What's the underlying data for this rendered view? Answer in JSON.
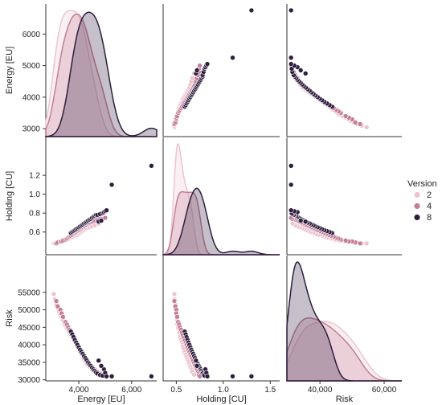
{
  "chart_data": {
    "type": "pairplot",
    "variables": [
      {
        "key": "energy",
        "label": "Energy  [EU]",
        "range": [
          2750,
          6950
        ],
        "ticks": [
          3000,
          4000,
          5000,
          6000
        ],
        "tick_labels": [
          "3000",
          "4000",
          "5000",
          "6000"
        ],
        "bottom_ticks": [
          4000,
          6000
        ],
        "bottom_tick_labels": [
          "4,000",
          "6,000"
        ]
      },
      {
        "key": "holding",
        "label": "Holding  [CU]",
        "range": [
          0.36,
          1.6
        ],
        "ticks": [
          0.6,
          0.8,
          1.0,
          1.2
        ],
        "tick_labels": [
          "0.6",
          "0.8",
          "1.0",
          "1.2"
        ],
        "bottom_ticks": [
          0.5,
          1.0,
          1.5
        ],
        "bottom_tick_labels": [
          "0.5",
          "1.0",
          "1.5"
        ]
      },
      {
        "key": "risk",
        "label": "Risk",
        "range": [
          29700,
          65500
        ],
        "ticks": [
          30000,
          35000,
          40000,
          45000,
          50000,
          55000
        ],
        "tick_labels": [
          "30000",
          "35000",
          "40000",
          "45000",
          "50000",
          "55000"
        ],
        "bottom_ticks": [
          40000,
          60000
        ],
        "bottom_tick_labels": [
          "40,000",
          "60,000"
        ]
      }
    ],
    "legend": {
      "title": "Version",
      "placement": "right",
      "entries": [
        "2",
        "4",
        "8"
      ]
    },
    "colors": {
      "2": "#ecc5cf",
      "4": "#c47e99",
      "8": "#2d1e3e"
    },
    "series": [
      {
        "name": "2",
        "points": [
          [
            3050,
            0.48,
            54500
          ],
          [
            3100,
            0.48,
            53000
          ],
          [
            3150,
            0.49,
            51500
          ],
          [
            3200,
            0.49,
            50500
          ],
          [
            3250,
            0.5,
            49500
          ],
          [
            3300,
            0.5,
            48800
          ],
          [
            3350,
            0.5,
            48000
          ],
          [
            3400,
            0.51,
            47000
          ],
          [
            3450,
            0.51,
            46000
          ],
          [
            3500,
            0.52,
            45500
          ],
          [
            3550,
            0.52,
            44800
          ],
          [
            3600,
            0.53,
            44000
          ],
          [
            3650,
            0.53,
            43500
          ],
          [
            3700,
            0.54,
            42800
          ],
          [
            3750,
            0.54,
            42300
          ],
          [
            3800,
            0.55,
            41500
          ],
          [
            3850,
            0.56,
            40800
          ],
          [
            3900,
            0.57,
            40200
          ],
          [
            3950,
            0.57,
            39500
          ],
          [
            4000,
            0.58,
            38800
          ],
          [
            4050,
            0.59,
            38000
          ],
          [
            4100,
            0.6,
            37200
          ],
          [
            4150,
            0.61,
            36500
          ],
          [
            4200,
            0.62,
            35800
          ],
          [
            4250,
            0.63,
            35200
          ],
          [
            4300,
            0.64,
            34500
          ],
          [
            4400,
            0.65,
            33800
          ],
          [
            4500,
            0.66,
            33000
          ],
          [
            4600,
            0.67,
            32300
          ],
          [
            4750,
            0.69,
            31500
          ]
        ]
      },
      {
        "name": "4",
        "points": [
          [
            3150,
            0.48,
            52500
          ],
          [
            3200,
            0.49,
            51000
          ],
          [
            3300,
            0.5,
            50000
          ],
          [
            3350,
            0.5,
            49000
          ],
          [
            3400,
            0.51,
            48000
          ],
          [
            3500,
            0.52,
            46500
          ],
          [
            3550,
            0.53,
            45800
          ],
          [
            3600,
            0.54,
            45000
          ],
          [
            3650,
            0.55,
            44300
          ],
          [
            3700,
            0.56,
            43500
          ],
          [
            3750,
            0.57,
            42800
          ],
          [
            3800,
            0.58,
            42000
          ],
          [
            3850,
            0.59,
            41300
          ],
          [
            3900,
            0.6,
            40600
          ],
          [
            3950,
            0.61,
            40000
          ],
          [
            4000,
            0.62,
            39300
          ],
          [
            4050,
            0.63,
            38600
          ],
          [
            4100,
            0.64,
            38000
          ],
          [
            4150,
            0.65,
            37300
          ],
          [
            4200,
            0.66,
            36700
          ],
          [
            4250,
            0.67,
            36000
          ],
          [
            4300,
            0.68,
            35400
          ],
          [
            4350,
            0.69,
            34800
          ],
          [
            4400,
            0.7,
            34200
          ],
          [
            4500,
            0.71,
            33500
          ],
          [
            4600,
            0.72,
            33000
          ],
          [
            4700,
            0.73,
            32300
          ],
          [
            4800,
            0.74,
            31800
          ],
          [
            4900,
            0.74,
            31300
          ],
          [
            5000,
            0.75,
            31000
          ]
        ]
      },
      {
        "name": "8",
        "points": [
          [
            3700,
            0.59,
            43800
          ],
          [
            3750,
            0.6,
            43000
          ],
          [
            3800,
            0.61,
            42200
          ],
          [
            3850,
            0.62,
            41400
          ],
          [
            3900,
            0.63,
            40700
          ],
          [
            3950,
            0.64,
            40000
          ],
          [
            4000,
            0.65,
            39300
          ],
          [
            4050,
            0.66,
            38600
          ],
          [
            4100,
            0.67,
            38000
          ],
          [
            4150,
            0.68,
            37400
          ],
          [
            4200,
            0.69,
            36800
          ],
          [
            4250,
            0.7,
            36200
          ],
          [
            4300,
            0.71,
            35600
          ],
          [
            4350,
            0.72,
            35000
          ],
          [
            4400,
            0.73,
            34500
          ],
          [
            4450,
            0.74,
            34000
          ],
          [
            4500,
            0.75,
            33500
          ],
          [
            4550,
            0.76,
            33000
          ],
          [
            4600,
            0.77,
            32600
          ],
          [
            4650,
            0.78,
            32200
          ],
          [
            4700,
            0.78,
            31800
          ],
          [
            4800,
            0.79,
            31400
          ],
          [
            4900,
            0.8,
            31200
          ],
          [
            4950,
            0.81,
            33000
          ],
          [
            5000,
            0.82,
            32000
          ],
          [
            4750,
            0.71,
            35500
          ],
          [
            5050,
            0.83,
            31000
          ],
          [
            5250,
            1.1,
            31000
          ],
          [
            6750,
            1.3,
            31000
          ],
          [
            4850,
            0.72,
            34000
          ]
        ]
      }
    ]
  }
}
